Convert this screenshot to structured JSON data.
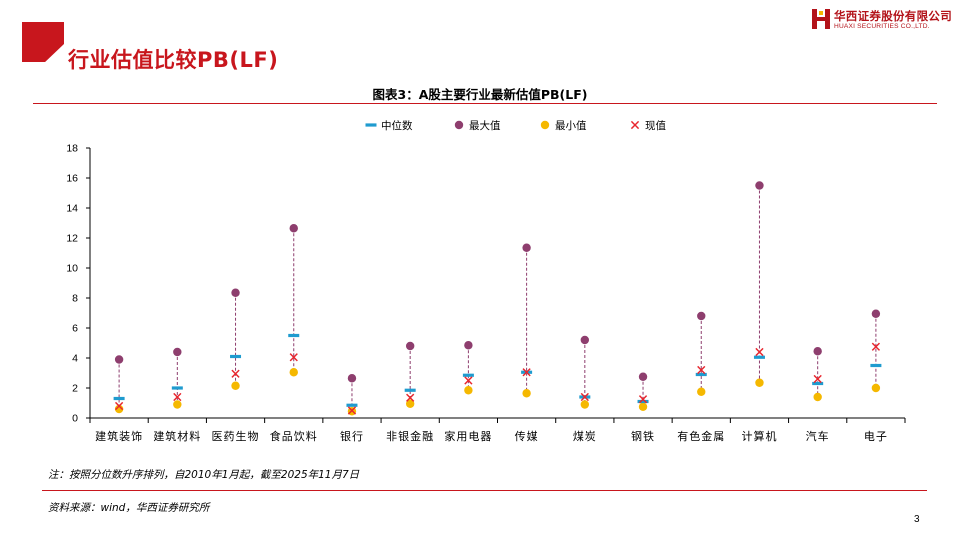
{
  "header": {
    "title": "行业估值比较PB(LF)",
    "logo_cn": "华西证券股份有限公司",
    "logo_en": "HUAXI SECURITIES CO.,LTD."
  },
  "chart_data": {
    "type": "scatter",
    "title": "图表3：A股主要行业最新估值PB(LF)",
    "categories": [
      "建筑装饰",
      "建筑材料",
      "医药生物",
      "食品饮料",
      "银行",
      "非银金融",
      "家用电器",
      "传媒",
      "煤炭",
      "钢铁",
      "有色金属",
      "计算机",
      "汽车",
      "电子"
    ],
    "series": [
      {
        "name": "中位数",
        "marker": "dash",
        "color": "#1f9bcf",
        "values": [
          1.3,
          2.0,
          4.1,
          5.5,
          0.85,
          1.85,
          2.85,
          3.05,
          1.4,
          1.1,
          2.9,
          4.05,
          2.3,
          3.5
        ]
      },
      {
        "name": "最大值",
        "marker": "circle",
        "color": "#8e3e6e",
        "values": [
          3.9,
          4.4,
          8.35,
          12.65,
          2.65,
          4.8,
          4.85,
          11.35,
          5.2,
          2.75,
          6.8,
          15.5,
          4.45,
          6.95
        ]
      },
      {
        "name": "最小值",
        "marker": "circle",
        "color": "#f5b800",
        "values": [
          0.6,
          0.9,
          2.15,
          3.05,
          0.45,
          0.95,
          1.85,
          1.65,
          0.9,
          0.75,
          1.75,
          2.35,
          1.4,
          2.0
        ]
      },
      {
        "name": "现值",
        "marker": "cross",
        "color": "#e8262e",
        "values": [
          0.8,
          1.4,
          2.95,
          4.05,
          0.5,
          1.35,
          2.5,
          3.05,
          1.4,
          1.25,
          3.2,
          4.4,
          2.6,
          4.75
        ]
      }
    ],
    "ylim": [
      0,
      18
    ],
    "yticks": [
      "0",
      "2",
      "4",
      "6",
      "8",
      "10",
      "12",
      "14",
      "16",
      "18"
    ],
    "range_line_color": "#8e3e6e",
    "legend_position": "top"
  },
  "footer": {
    "note": "注：按照分位数升序排列，自2010年1月起，截至2025年11月7日",
    "source": "资料来源：wind，华西证券研究所",
    "page_number": "3"
  },
  "colors": {
    "accent": "#c8161d"
  }
}
